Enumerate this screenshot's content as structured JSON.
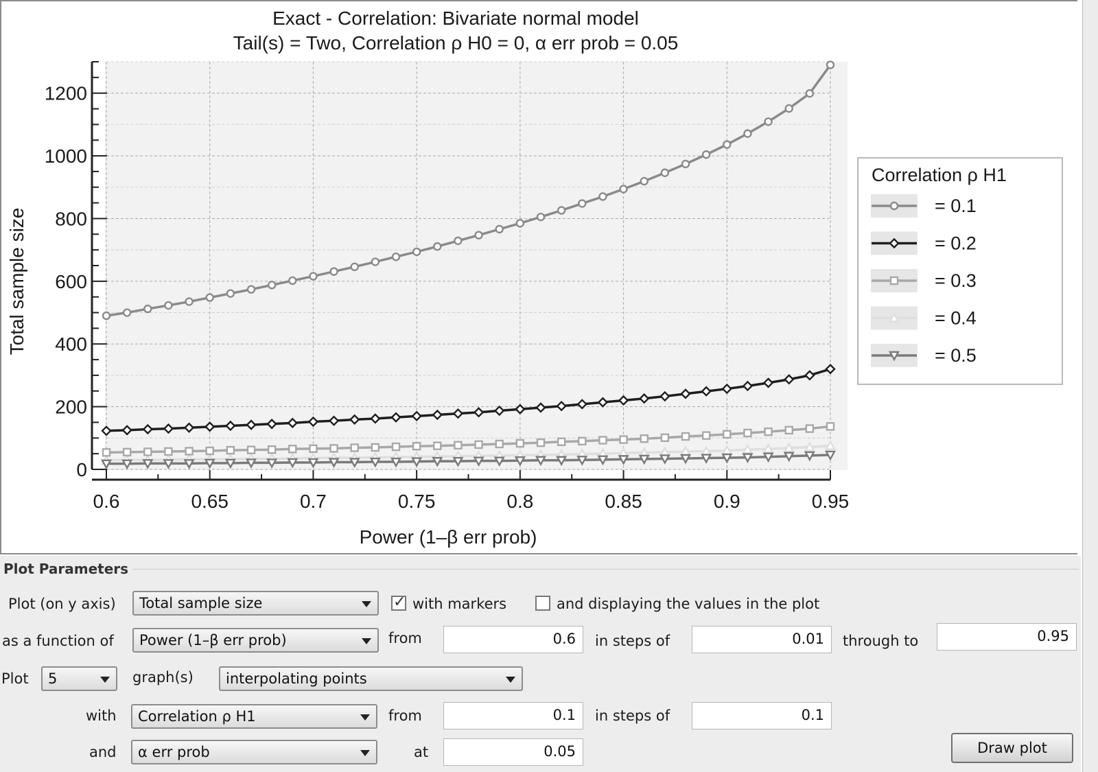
{
  "chart_data": {
    "type": "line",
    "title": "Exact - Correlation: Bivariate normal model",
    "subtitle": "Tail(s) = Two, Correlation ρ H0 = 0, α err prob = 0.05",
    "xlabel": "Power (1–β err prob)",
    "ylabel": "Total sample size",
    "xlim": [
      0.6,
      0.95
    ],
    "ylim": [
      0,
      1300
    ],
    "xticks": [
      "0.6",
      "0.65",
      "0.7",
      "0.75",
      "0.8",
      "0.85",
      "0.9",
      "0.95"
    ],
    "yticks": [
      "0",
      "200",
      "400",
      "600",
      "800",
      "1000",
      "1200"
    ],
    "grid": true,
    "legend_title": "Correlation ρ H1",
    "legend_position": "right",
    "x": [
      0.6,
      0.61,
      0.62,
      0.63,
      0.64,
      0.65,
      0.66,
      0.67,
      0.68,
      0.69,
      0.7,
      0.71,
      0.72,
      0.73,
      0.74,
      0.75,
      0.76,
      0.77,
      0.78,
      0.79,
      0.8,
      0.81,
      0.82,
      0.83,
      0.84,
      0.85,
      0.86,
      0.87,
      0.88,
      0.89,
      0.9,
      0.91,
      0.92,
      0.93,
      0.94,
      0.95
    ],
    "series": [
      {
        "name": "= 0.1",
        "marker": "circle",
        "color": "#8a8a8a",
        "values": [
          490,
          500,
          512,
          523,
          535,
          548,
          561,
          574,
          588,
          602,
          616,
          631,
          646,
          662,
          678,
          694,
          711,
          729,
          747,
          766,
          785,
          805,
          826,
          848,
          870,
          894,
          919,
          946,
          974,
          1004,
          1036,
          1071,
          1109,
          1151,
          1199,
          1290
        ]
      },
      {
        "name": "= 0.2",
        "marker": "diamond",
        "color": "#1e1e1e",
        "values": [
          123,
          125,
          128,
          130,
          133,
          136,
          139,
          142,
          145,
          148,
          152,
          155,
          159,
          162,
          166,
          170,
          174,
          178,
          182,
          187,
          192,
          197,
          202,
          208,
          214,
          220,
          226,
          233,
          241,
          249,
          257,
          266,
          276,
          287,
          300,
          320
        ]
      },
      {
        "name": "= 0.3",
        "marker": "square",
        "color": "#a8a8a8",
        "values": [
          54,
          55,
          56,
          57,
          58,
          59,
          61,
          62,
          63,
          65,
          66,
          67,
          69,
          70,
          72,
          74,
          75,
          77,
          79,
          81,
          83,
          85,
          88,
          90,
          93,
          95,
          98,
          101,
          105,
          108,
          112,
          116,
          120,
          125,
          130,
          137
        ]
      },
      {
        "name": "= 0.4",
        "marker": "triangle-up",
        "color": "#dedede",
        "values": [
          29,
          30,
          30,
          31,
          32,
          32,
          33,
          34,
          34,
          35,
          36,
          37,
          37,
          38,
          39,
          40,
          41,
          42,
          43,
          44,
          45,
          46,
          47,
          49,
          50,
          52,
          53,
          55,
          57,
          58,
          60,
          63,
          65,
          68,
          71,
          75
        ]
      },
      {
        "name": "= 0.5",
        "marker": "triangle-down",
        "color": "#7a7a7a",
        "values": [
          18,
          18,
          19,
          19,
          19,
          20,
          20,
          21,
          21,
          22,
          22,
          23,
          23,
          24,
          24,
          25,
          26,
          26,
          27,
          27,
          28,
          29,
          29,
          30,
          31,
          32,
          33,
          34,
          35,
          36,
          37,
          38,
          40,
          42,
          44,
          46
        ]
      }
    ]
  },
  "params": {
    "title": "Plot Parameters",
    "row1": {
      "label": "Plot (on y axis)",
      "select": "Total sample size",
      "markers_label": "with markers",
      "markers_checked": true,
      "values_label": "and displaying the values in the plot",
      "values_checked": false
    },
    "row2": {
      "label": "as a function of",
      "select": "Power (1–β err prob)",
      "from_label": "from",
      "from": "0.6",
      "steps_label": "in steps of",
      "steps": "0.01",
      "through_label": "through to",
      "through": "0.95"
    },
    "row3": {
      "label": "Plot",
      "count": "5",
      "graphs_label": "graph(s)",
      "mode": "interpolating points"
    },
    "row4": {
      "label": "with",
      "select": "Correlation ρ H1",
      "from_label": "from",
      "from": "0.1",
      "steps_label": "in steps of",
      "steps": "0.1"
    },
    "row5": {
      "label": "and",
      "select": "α err prob",
      "at_label": "at",
      "at": "0.05"
    },
    "draw_button": "Draw plot"
  }
}
